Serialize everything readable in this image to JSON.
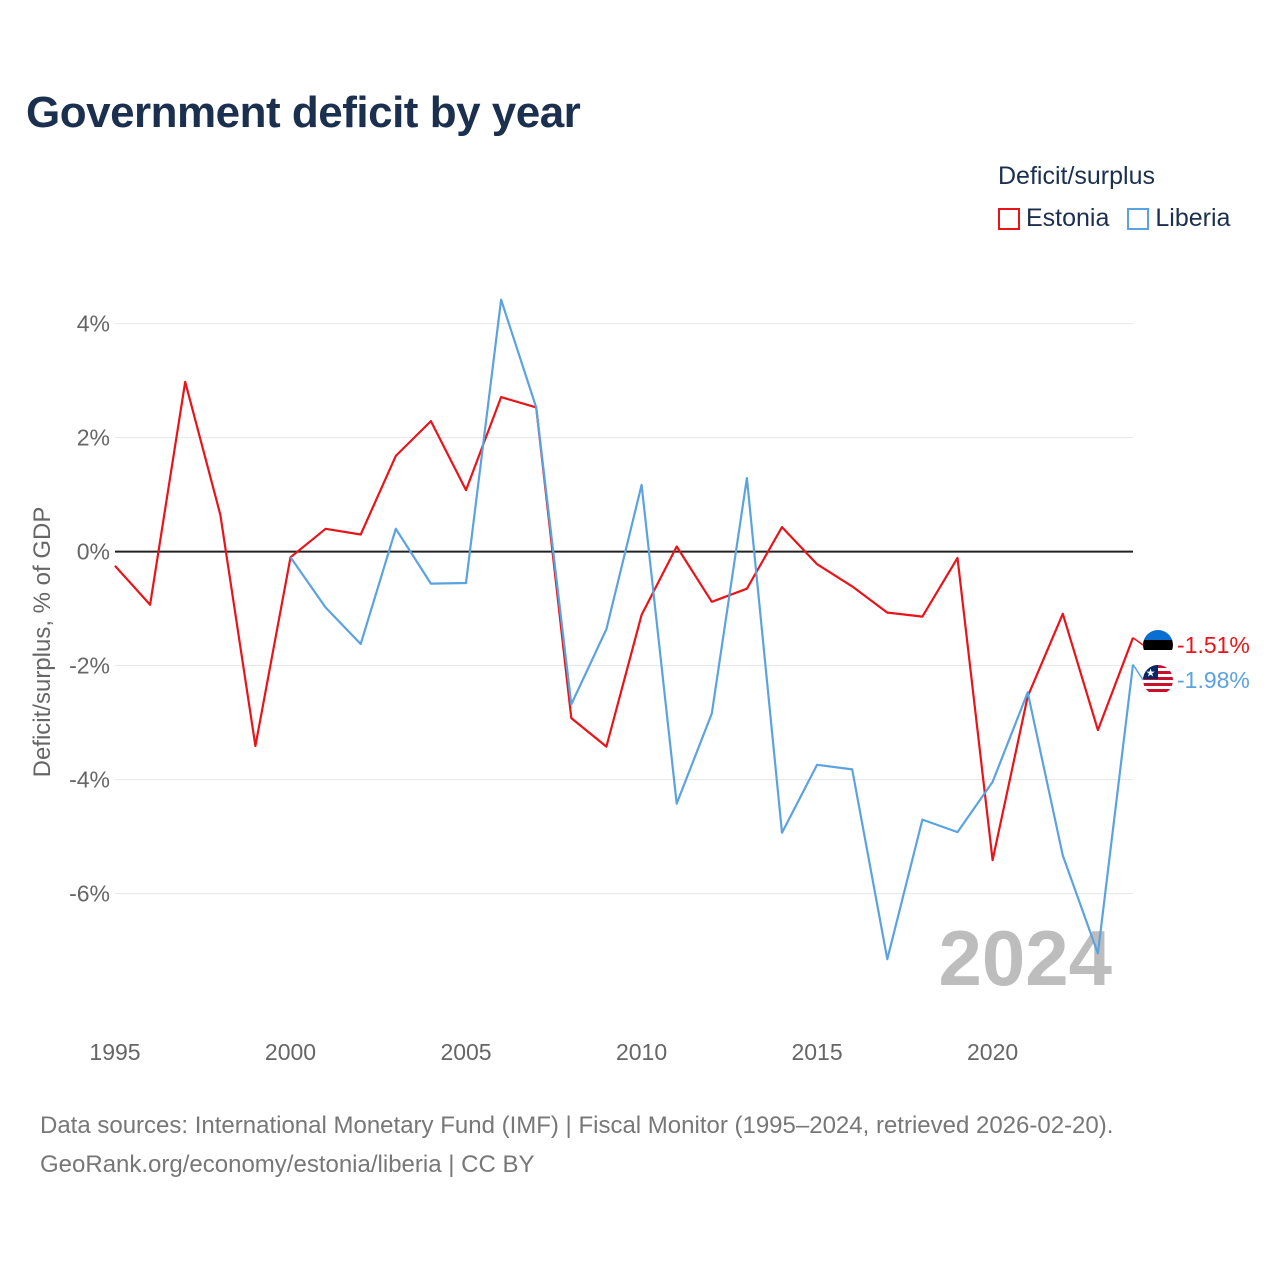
{
  "title": "Government deficit by year",
  "legend": {
    "title": "Deficit/surplus",
    "items": [
      {
        "label": "Estonia",
        "color": "#e8141a"
      },
      {
        "label": "Liberia",
        "color": "#5ba3e0"
      }
    ]
  },
  "footer": {
    "line1": "Data sources: International Monetary Fund (IMF) | Fiscal Monitor (1995–2024, retrieved 2026-02-20).",
    "line2": "GeoRank.org/economy/estonia/liberia | CC BY"
  },
  "chart_data": {
    "type": "line",
    "title": "Government deficit by year",
    "xlabel": "",
    "ylabel": "Deficit/surplus, % of GDP",
    "xlim": [
      1995,
      2024
    ],
    "ylim": [
      -7.9,
      4.8
    ],
    "x_ticks": [
      1995,
      2000,
      2005,
      2010,
      2015,
      2020
    ],
    "y_ticks": [
      4,
      2,
      0,
      -2,
      -4,
      -6
    ],
    "y_tick_labels": [
      "4%",
      "2%",
      "0%",
      "-2%",
      "-4%",
      "-6%"
    ],
    "year_label": "2024",
    "series": [
      {
        "name": "Estonia",
        "color": "#e8141a",
        "end_label": "-1.51%",
        "x": [
          1995,
          1996,
          1997,
          1998,
          1999,
          2000,
          2001,
          2002,
          2003,
          2004,
          2005,
          2006,
          2007,
          2008,
          2009,
          2010,
          2011,
          2012,
          2013,
          2014,
          2015,
          2016,
          2017,
          2018,
          2019,
          2020,
          2021,
          2022,
          2023,
          2024
        ],
        "values": [
          -0.25,
          -0.93,
          2.98,
          0.65,
          -3.41,
          -0.1,
          0.4,
          0.3,
          1.68,
          2.29,
          1.08,
          2.71,
          2.53,
          -2.92,
          -3.42,
          -1.11,
          0.09,
          -0.88,
          -0.65,
          0.43,
          -0.22,
          -0.61,
          -1.07,
          -1.14,
          -0.11,
          -5.41,
          -2.54,
          -1.09,
          -3.13,
          -1.51
        ]
      },
      {
        "name": "Liberia",
        "color": "#5ba3e0",
        "end_label": "-1.98%",
        "x": [
          2000,
          2001,
          2002,
          2003,
          2004,
          2005,
          2006,
          2007,
          2008,
          2009,
          2010,
          2011,
          2012,
          2013,
          2014,
          2015,
          2016,
          2017,
          2018,
          2019,
          2020,
          2021,
          2022,
          2023,
          2024
        ],
        "values": [
          -0.1,
          -0.98,
          -1.62,
          0.4,
          -0.56,
          -0.55,
          4.42,
          2.53,
          -2.68,
          -1.36,
          1.17,
          -4.42,
          -2.84,
          1.29,
          -4.93,
          -3.74,
          -3.82,
          -7.15,
          -4.7,
          -4.92,
          -4.04,
          -2.47,
          -5.33,
          -7.05,
          -1.98
        ]
      }
    ]
  }
}
